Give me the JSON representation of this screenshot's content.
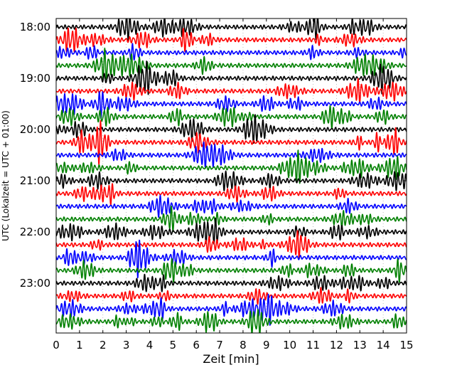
{
  "chart_data": {
    "type": "line",
    "title": "",
    "xlabel": "Zeit  [min]",
    "ylabel": "UTC (Lokalzeit = UTC + 01:00)",
    "xlim": [
      0,
      15
    ],
    "x_ticks": [
      0,
      1,
      2,
      3,
      4,
      5,
      6,
      7,
      8,
      9,
      10,
      11,
      12,
      13,
      14,
      15
    ],
    "y_tick_labels": [
      "18:00",
      "19:00",
      "20:00",
      "21:00",
      "22:00",
      "23:00"
    ],
    "trace_interval_min": 15,
    "start_time": "18:00",
    "trace_count": 24,
    "trace_colors": [
      "#000000",
      "#ff0000",
      "#0000ff",
      "#008000"
    ],
    "grid": true
  }
}
